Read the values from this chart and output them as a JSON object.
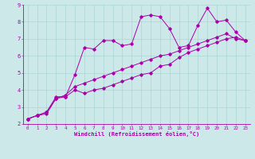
{
  "xlabel": "Windchill (Refroidissement éolien,°C)",
  "background_color": "#cce8e8",
  "line_color": "#aa00aa",
  "x_data": [
    0,
    1,
    2,
    3,
    4,
    5,
    6,
    7,
    8,
    9,
    10,
    11,
    12,
    13,
    14,
    15,
    16,
    17,
    18,
    19,
    20,
    21,
    22,
    23
  ],
  "series1": [
    2.3,
    2.5,
    2.6,
    3.5,
    3.6,
    4.9,
    6.5,
    6.4,
    6.9,
    6.9,
    6.6,
    6.7,
    8.3,
    8.4,
    8.3,
    7.6,
    6.5,
    6.6,
    7.8,
    8.8,
    8.0,
    8.1,
    7.4,
    6.9
  ],
  "series2": [
    2.3,
    2.5,
    2.7,
    3.6,
    3.6,
    4.0,
    3.8,
    4.0,
    4.1,
    4.3,
    4.5,
    4.7,
    4.9,
    5.0,
    5.4,
    5.5,
    5.9,
    6.2,
    6.4,
    6.6,
    6.8,
    7.0,
    7.1,
    6.9
  ],
  "series3": [
    2.3,
    2.5,
    2.7,
    3.5,
    3.7,
    4.2,
    4.4,
    4.6,
    4.8,
    5.0,
    5.2,
    5.4,
    5.6,
    5.8,
    6.0,
    6.1,
    6.3,
    6.5,
    6.7,
    6.9,
    7.1,
    7.3,
    7.0,
    6.9
  ],
  "ylim": [
    2,
    9
  ],
  "xlim": [
    -0.5,
    23.5
  ],
  "grid_color": "#aad4d4",
  "xticks": [
    0,
    1,
    2,
    3,
    4,
    5,
    6,
    7,
    8,
    9,
    10,
    11,
    12,
    13,
    14,
    15,
    16,
    17,
    18,
    19,
    20,
    21,
    22,
    23
  ],
  "yticks": [
    2,
    3,
    4,
    5,
    6,
    7,
    8,
    9
  ],
  "xlabel_fontsize": 5.0,
  "tick_fontsize": 4.2,
  "ytick_fontsize": 5.0
}
